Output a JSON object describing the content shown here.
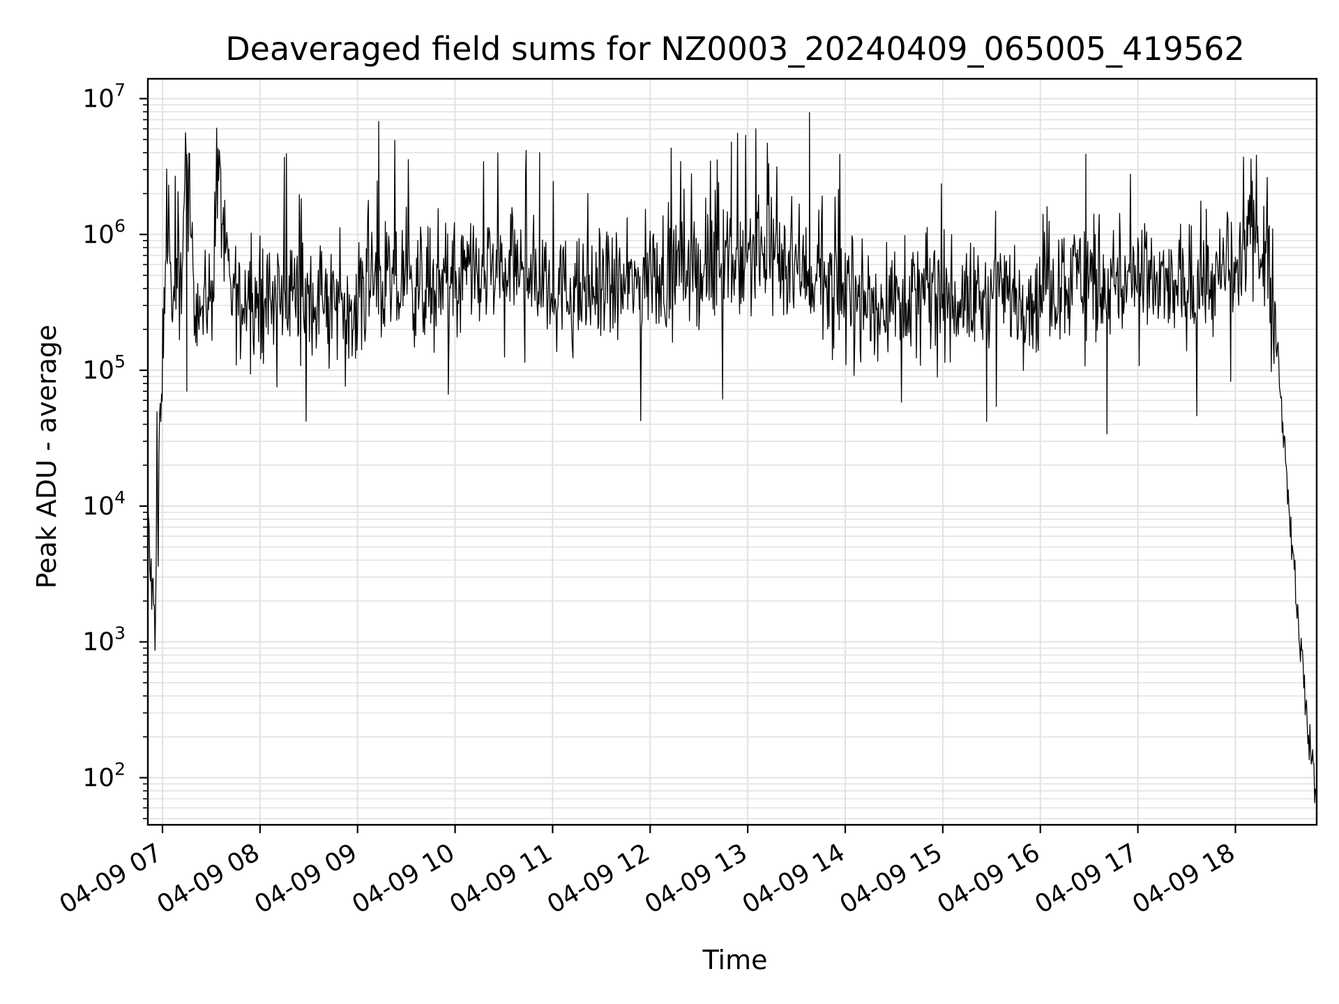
{
  "chart_data": {
    "type": "line",
    "title": "Deaveraged field sums for NZ0003_20240409_065005_419562",
    "xlabel": "Time",
    "ylabel": "Peak ADU - average",
    "yscale": "log",
    "xlim": [
      "2024-04-09 06:51",
      "2024-04-09 18:50"
    ],
    "ylim": [
      45,
      14000000
    ],
    "grid": true,
    "x_tick_labels": [
      "04-09 07",
      "04-09 08",
      "04-09 09",
      "04-09 10",
      "04-09 11",
      "04-09 12",
      "04-09 13",
      "04-09 14",
      "04-09 15",
      "04-09 16",
      "04-09 17",
      "04-09 18"
    ],
    "y_tick_labels": [
      {
        "base": "10",
        "exp": "2"
      },
      {
        "base": "10",
        "exp": "3"
      },
      {
        "base": "10",
        "exp": "4"
      },
      {
        "base": "10",
        "exp": "5"
      },
      {
        "base": "10",
        "exp": "6"
      },
      {
        "base": "10",
        "exp": "7"
      }
    ],
    "line_color": "#000000",
    "grid_color": "#e2e2e2",
    "series": [
      {
        "x": [
          "2024-04-09 06:51",
          "2024-04-09 06:53",
          "2024-04-09 06:55",
          "2024-04-09 06:57",
          "2024-04-09 06:59",
          "2024-04-09 07:01",
          "2024-04-09 07:03",
          "2024-04-09 07:05",
          "2024-04-09 07:07",
          "2024-04-09 07:10",
          "2024-04-09 07:15",
          "2024-04-09 07:20",
          "2024-04-09 07:25",
          "2024-04-09 07:30",
          "2024-04-09 07:35",
          "2024-04-09 07:40",
          "2024-04-09 07:45",
          "2024-04-09 07:50",
          "2024-04-09 07:55",
          "2024-04-09 08:00",
          "2024-04-09 08:10",
          "2024-04-09 08:20",
          "2024-04-09 08:30",
          "2024-04-09 08:40",
          "2024-04-09 08:50",
          "2024-04-09 09:00",
          "2024-04-09 09:10",
          "2024-04-09 09:20",
          "2024-04-09 09:30",
          "2024-04-09 09:45",
          "2024-04-09 10:00",
          "2024-04-09 10:15",
          "2024-04-09 10:30",
          "2024-04-09 10:45",
          "2024-04-09 11:00",
          "2024-04-09 11:15",
          "2024-04-09 11:30",
          "2024-04-09 11:45",
          "2024-04-09 12:00",
          "2024-04-09 12:15",
          "2024-04-09 12:30",
          "2024-04-09 12:45",
          "2024-04-09 13:00",
          "2024-04-09 13:15",
          "2024-04-09 13:30",
          "2024-04-09 13:45",
          "2024-04-09 14:00",
          "2024-04-09 14:15",
          "2024-04-09 14:30",
          "2024-04-09 14:45",
          "2024-04-09 15:00",
          "2024-04-09 15:15",
          "2024-04-09 15:30",
          "2024-04-09 15:45",
          "2024-04-09 16:00",
          "2024-04-09 16:15",
          "2024-04-09 16:30",
          "2024-04-09 16:45",
          "2024-04-09 17:00",
          "2024-04-09 17:15",
          "2024-04-09 17:30",
          "2024-04-09 17:45",
          "2024-04-09 18:00",
          "2024-04-09 18:10",
          "2024-04-09 18:20",
          "2024-04-09 18:25",
          "2024-04-09 18:30",
          "2024-04-09 18:35",
          "2024-04-09 18:40",
          "2024-04-09 18:45",
          "2024-04-09 18:50"
        ],
        "y": [
          9000,
          2500,
          1500,
          10000,
          50000,
          300000,
          2500000,
          400000,
          300000,
          350000,
          2800000,
          400000,
          300000,
          350000,
          2800000,
          400000,
          350000,
          300000,
          400000,
          350000,
          350000,
          400000,
          350000,
          300000,
          350000,
          350000,
          450000,
          400000,
          400000,
          450000,
          450000,
          500000,
          550000,
          550000,
          400000,
          350000,
          400000,
          400000,
          500000,
          550000,
          550000,
          600000,
          700000,
          700000,
          600000,
          450000,
          350000,
          300000,
          350000,
          350000,
          350000,
          320000,
          350000,
          350000,
          350000,
          500000,
          500000,
          450000,
          450000,
          400000,
          400000,
          450000,
          500000,
          1000000,
          800000,
          200000,
          30000,
          5000,
          1000,
          200,
          70
        ]
      }
    ],
    "peaks": [
      {
        "x": "2024-04-09 08:15",
        "y": 3700000
      },
      {
        "x": "2024-04-09 09:13",
        "y": 6800000
      },
      {
        "x": "2024-04-09 10:52",
        "y": 4000000
      },
      {
        "x": "2024-04-09 12:50",
        "y": 4800000
      },
      {
        "x": "2024-04-09 13:38",
        "y": 7900000
      },
      {
        "x": "2024-04-09 16:28",
        "y": 3900000
      },
      {
        "x": "2024-04-09 15:27",
        "y": 42000
      },
      {
        "x": "2024-04-09 16:41",
        "y": 34000
      },
      {
        "x": "2024-04-09 07:15",
        "y": 70000
      }
    ]
  }
}
